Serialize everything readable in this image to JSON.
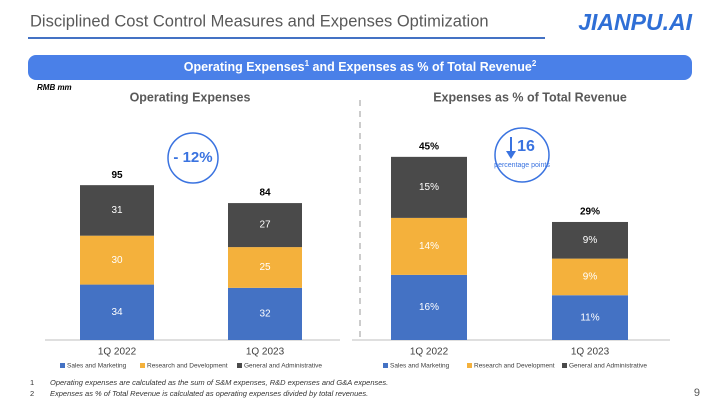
{
  "header": {
    "title": "Disciplined Cost Control Measures and Expenses Optimization",
    "logo": "JIANPU.AI"
  },
  "banner": {
    "parts": [
      "Operating Expenses",
      "1",
      " and Expenses as % of Total Revenue",
      "2"
    ]
  },
  "unit": "RMB mm",
  "chart_data": [
    {
      "type": "bar",
      "stacked": true,
      "title": "Operating Expenses",
      "categories": [
        "1Q 2022",
        "1Q 2023"
      ],
      "series": [
        {
          "name": "Sales and Marketing",
          "color": "#4472c4",
          "values": [
            34,
            32
          ]
        },
        {
          "name": "Research and Development",
          "color": "#f4b13c",
          "values": [
            30,
            25
          ]
        },
        {
          "name": "General and Administrative",
          "color": "#4a4a4a",
          "values": [
            31,
            27
          ]
        }
      ],
      "totals": [
        95,
        84
      ],
      "annotation": {
        "text": "- 12%"
      }
    },
    {
      "type": "bar",
      "stacked": true,
      "title": "Expenses as % of Total Revenue",
      "categories": [
        "1Q 2022",
        "1Q 2023"
      ],
      "series": [
        {
          "name": "Sales and Marketing",
          "color": "#4472c4",
          "values": [
            16,
            11
          ],
          "value_labels": [
            "16%",
            "11%"
          ]
        },
        {
          "name": "Research and Development",
          "color": "#f4b13c",
          "values": [
            14,
            9
          ],
          "value_labels": [
            "14%",
            "9%"
          ]
        },
        {
          "name": "General and Administrative",
          "color": "#4a4a4a",
          "values": [
            15,
            9
          ],
          "value_labels": [
            "15%",
            "9%"
          ]
        }
      ],
      "totals": [
        45,
        29
      ],
      "total_labels": [
        "45%",
        "29%"
      ],
      "annotation": {
        "value": "16",
        "text": "percentage points"
      }
    }
  ],
  "footnotes": [
    {
      "number": "1",
      "text": "Operating expenses are calculated as the sum of S&M expenses, R&D expenses and G&A expenses."
    },
    {
      "number": "2",
      "text": "Expenses as % of Total Revenue is calculated as operating expenses divided by total revenues."
    }
  ],
  "page_number": "9"
}
